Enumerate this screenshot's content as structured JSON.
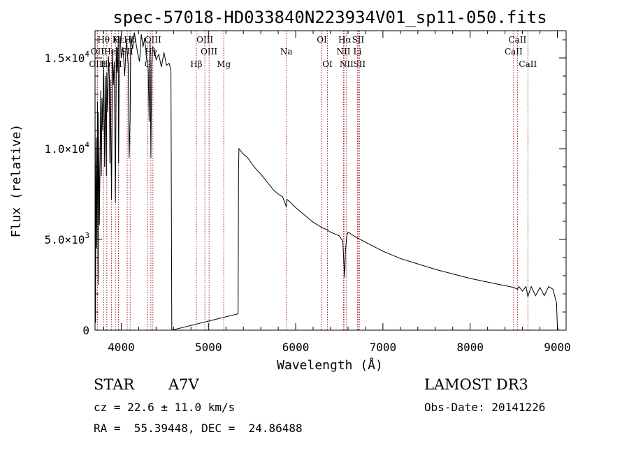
{
  "chart_data": {
    "type": "line",
    "title": "spec-57018-HD033840N223934V01_sp11-050.fits",
    "xlabel": "Wavelength (Å)",
    "ylabel": "Flux (relative)",
    "xlim": [
      3700,
      9100
    ],
    "ylim": [
      0,
      16500
    ],
    "x_ticks": [
      {
        "value": 4000,
        "label": "4000"
      },
      {
        "value": 5000,
        "label": "5000"
      },
      {
        "value": 6000,
        "label": "6000"
      },
      {
        "value": 7000,
        "label": "7000"
      },
      {
        "value": 8000,
        "label": "8000"
      },
      {
        "value": 9000,
        "label": "9000"
      }
    ],
    "y_ticks": [
      {
        "value": 0,
        "mantissa": "0",
        "exp": ""
      },
      {
        "value": 5000,
        "mantissa": "5.0×10",
        "exp": "3"
      },
      {
        "value": 10000,
        "mantissa": "1.0×10",
        "exp": "4"
      },
      {
        "value": 15000,
        "mantissa": "1.5×10",
        "exp": "4"
      }
    ],
    "series": [
      {
        "name": "spectrum",
        "x": [
          3700,
          3705,
          3712,
          3720,
          3728,
          3735,
          3742,
          3750,
          3758,
          3765,
          3772,
          3780,
          3788,
          3795,
          3800,
          3810,
          3820,
          3830,
          3835,
          3845,
          3855,
          3865,
          3870,
          3875,
          3889,
          3900,
          3910,
          3920,
          3933,
          3945,
          3955,
          3965,
          3970,
          3980,
          3990,
          4000,
          4020,
          4040,
          4060,
          4080,
          4090,
          4102,
          4110,
          4130,
          4150,
          4170,
          4190,
          4210,
          4230,
          4250,
          4270,
          4290,
          4310,
          4320,
          4330,
          4340,
          4350,
          4360,
          4380,
          4400,
          4430,
          4460,
          4490,
          4520,
          4550,
          4570,
          4580,
          5340,
          5345,
          5350,
          5400,
          5450,
          5500,
          5550,
          5600,
          5650,
          5700,
          5750,
          5800,
          5850,
          5892,
          5900,
          5950,
          6000,
          6050,
          6100,
          6150,
          6200,
          6250,
          6300,
          6350,
          6400,
          6450,
          6500,
          6540,
          6555,
          6563,
          6570,
          6585,
          6600,
          6650,
          6700,
          6800,
          6900,
          7000,
          7200,
          7400,
          7600,
          7800,
          8000,
          8200,
          8400,
          8500,
          8542,
          8560,
          8600,
          8640,
          8662,
          8700,
          8750,
          8800,
          8850,
          8900,
          8950,
          8990,
          9000,
          9010
        ],
        "y": [
          13500,
          400,
          10600,
          4500,
          12600,
          2500,
          12000,
          5800,
          9500,
          13200,
          8500,
          12800,
          11000,
          13900,
          14500,
          9000,
          14000,
          8500,
          14200,
          12000,
          15100,
          13800,
          9200,
          13800,
          7200,
          15500,
          13500,
          14800,
          7000,
          15600,
          14200,
          15800,
          9200,
          15900,
          16200,
          15000,
          15600,
          14000,
          16000,
          14700,
          9500,
          11700,
          16200,
          15500,
          16400,
          15800,
          15200,
          14800,
          16300,
          15600,
          16100,
          15000,
          14400,
          11500,
          15900,
          9500,
          14700,
          15600,
          15500,
          14900,
          15200,
          14500,
          15300,
          14600,
          14700,
          14300,
          0,
          900,
          8800,
          10000,
          9700,
          9500,
          9150,
          8850,
          8600,
          8300,
          8000,
          7700,
          7500,
          7350,
          6800,
          7200,
          7000,
          6750,
          6550,
          6350,
          6150,
          5950,
          5800,
          5650,
          5550,
          5400,
          5300,
          5200,
          4900,
          3500,
          2900,
          4300,
          5200,
          5400,
          5250,
          5100,
          4850,
          4600,
          4350,
          3950,
          3650,
          3350,
          3100,
          2850,
          2650,
          2450,
          2350,
          2250,
          2400,
          2150,
          2400,
          1850,
          2400,
          1900,
          2350,
          1900,
          2400,
          2250,
          1500,
          200,
          0
        ],
        "color": "#000000"
      }
    ],
    "line_markers": [
      {
        "label": "Hθ",
        "wave": 3798,
        "row": 1
      },
      {
        "label": "OII",
        "wave": 3727,
        "row": 2
      },
      {
        "label": "OIII",
        "wave": 3727,
        "row": 3
      },
      {
        "label": "K",
        "wave": 3934,
        "row": 1
      },
      {
        "label": "HeI",
        "wave": 3889,
        "row": 2
      },
      {
        "label": "Hη",
        "wave": 3835,
        "row": 3
      },
      {
        "label": "Hε",
        "wave": 3970,
        "row": 1
      },
      {
        "label": "SII",
        "wave": 4069,
        "row": 2
      },
      {
        "label": "H",
        "wave": 3969,
        "row": 3
      },
      {
        "label": "OIII",
        "wave": 4363,
        "row": 1
      },
      {
        "label": "Hγ",
        "wave": 4340,
        "row": 2
      },
      {
        "label": "G",
        "wave": 4304,
        "row": 3
      },
      {
        "label": "Hδ",
        "wave": 4102,
        "row": 1
      },
      {
        "label": "OIII",
        "wave": 4959,
        "row": 1
      },
      {
        "label": "OIII",
        "wave": 5007,
        "row": 2
      },
      {
        "label": "Hβ",
        "wave": 4861,
        "row": 3
      },
      {
        "label": "Mg",
        "wave": 5175,
        "row": 3
      },
      {
        "label": "Na",
        "wave": 5893,
        "row": 2
      },
      {
        "label": "OI",
        "wave": 6300,
        "row": 1
      },
      {
        "label": "OI",
        "wave": 6364,
        "row": 3
      },
      {
        "label": "Hα",
        "wave": 6563,
        "row": 1
      },
      {
        "label": "SII",
        "wave": 6716,
        "row": 1
      },
      {
        "label": "NII",
        "wave": 6548,
        "row": 2
      },
      {
        "label": "Li",
        "wave": 6708,
        "row": 2
      },
      {
        "label": "NII",
        "wave": 6583,
        "row": 3
      },
      {
        "label": "SII",
        "wave": 6731,
        "row": 3
      },
      {
        "label": "CaII",
        "wave": 8542,
        "row": 1
      },
      {
        "label": "CaII",
        "wave": 8498,
        "row": 2
      },
      {
        "label": "CaII",
        "wave": 8662,
        "row": 3
      }
    ]
  },
  "info": {
    "object_class": "STAR",
    "subclass": "A7V",
    "survey": "LAMOST DR3",
    "redshift": "cz = 22.6 ± 11.0 km/s",
    "obs_date": "Obs-Date: 20141226",
    "coords": "RA =  55.39448, DEC =  24.86488"
  }
}
